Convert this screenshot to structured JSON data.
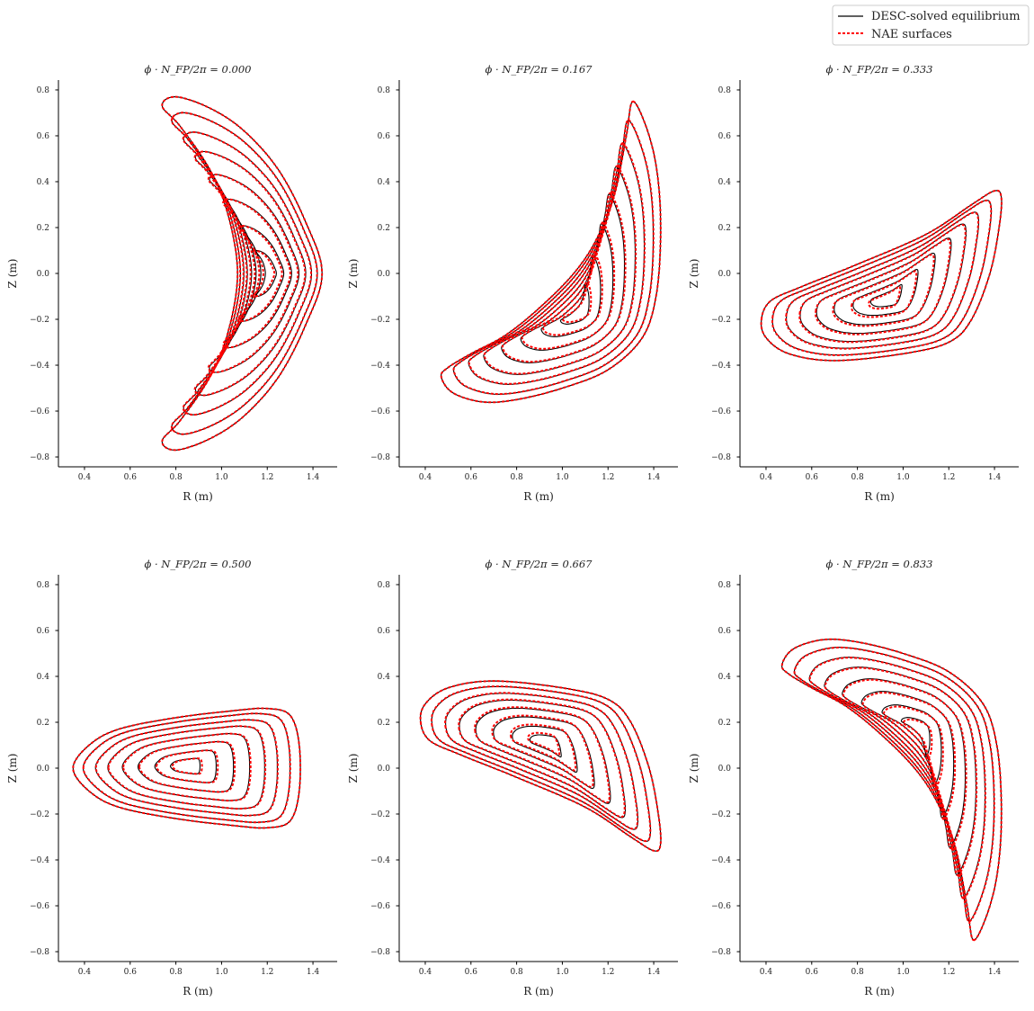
{
  "legend": {
    "entries": [
      {
        "label": "DESC-solved equilibrium",
        "color": "#000000",
        "style": "solid"
      },
      {
        "label": "NAE surfaces",
        "color": "#ff0000",
        "style": "dashed"
      }
    ],
    "placement": "top-right"
  },
  "chart_data": [
    {
      "type": "line",
      "title": "ϕ · N_FP/2π = 0.000",
      "xlabel": "R (m)",
      "ylabel": "Z (m)",
      "xlim": [
        0.286,
        1.506
      ],
      "ylim": [
        -0.843,
        0.843
      ],
      "x_ticks": [
        "0.4",
        "0.6",
        "0.8",
        "1.0",
        "1.2",
        "1.4"
      ],
      "y_ticks": [
        "−0.8",
        "−0.6",
        "−0.4",
        "−0.2",
        "0.0",
        "0.2",
        "0.4",
        "0.6",
        "0.8"
      ],
      "rho": [
        0.13,
        0.27,
        0.42,
        0.56,
        0.69,
        0.8,
        0.91,
        1.0
      ],
      "desc_axis": [
        1.21,
        0.0
      ],
      "nae_axis": [
        1.2,
        0.0
      ],
      "boundary": [
        [
          0.74,
          0.73
        ],
        [
          0.8,
          0.77
        ],
        [
          0.95,
          0.72
        ],
        [
          1.1,
          0.62
        ],
        [
          1.25,
          0.45
        ],
        [
          1.37,
          0.22
        ],
        [
          1.44,
          0.0
        ],
        [
          1.37,
          -0.22
        ],
        [
          1.25,
          -0.45
        ],
        [
          1.1,
          -0.62
        ],
        [
          0.95,
          -0.72
        ],
        [
          0.8,
          -0.77
        ],
        [
          0.74,
          -0.73
        ],
        [
          0.82,
          -0.64
        ],
        [
          0.95,
          -0.45
        ],
        [
          1.03,
          -0.25
        ],
        [
          1.07,
          0.0
        ],
        [
          1.03,
          0.25
        ],
        [
          0.95,
          0.45
        ],
        [
          0.82,
          0.64
        ]
      ]
    },
    {
      "type": "line",
      "title": "ϕ · N_FP/2π = 0.167",
      "xlabel": "R (m)",
      "ylabel": "Z (m)",
      "xlim": [
        0.286,
        1.506
      ],
      "ylim": [
        -0.843,
        0.843
      ],
      "x_ticks": [
        "0.4",
        "0.6",
        "0.8",
        "1.0",
        "1.2",
        "1.4"
      ],
      "y_ticks": [
        "−0.8",
        "−0.6",
        "−0.4",
        "−0.2",
        "0.0",
        "0.2",
        "0.4",
        "0.6",
        "0.8"
      ],
      "rho": [
        0.13,
        0.27,
        0.42,
        0.56,
        0.69,
        0.8,
        0.91,
        1.0
      ],
      "desc_axis": [
        1.07,
        -0.17
      ],
      "nae_axis": [
        1.08,
        -0.16
      ],
      "boundary": [
        [
          1.31,
          0.75
        ],
        [
          1.38,
          0.6
        ],
        [
          1.42,
          0.4
        ],
        [
          1.43,
          0.15
        ],
        [
          1.41,
          -0.1
        ],
        [
          1.35,
          -0.28
        ],
        [
          1.2,
          -0.42
        ],
        [
          1.0,
          -0.5
        ],
        [
          0.8,
          -0.55
        ],
        [
          0.65,
          -0.56
        ],
        [
          0.52,
          -0.52
        ],
        [
          0.47,
          -0.45
        ],
        [
          0.5,
          -0.41
        ],
        [
          0.6,
          -0.35
        ],
        [
          0.75,
          -0.27
        ],
        [
          0.9,
          -0.15
        ],
        [
          1.05,
          0.0
        ],
        [
          1.15,
          0.15
        ],
        [
          1.23,
          0.35
        ],
        [
          1.28,
          0.6
        ]
      ]
    },
    {
      "type": "line",
      "title": "ϕ · N_FP/2π = 0.333",
      "xlabel": "R (m)",
      "ylabel": "Z (m)",
      "xlim": [
        0.286,
        1.506
      ],
      "ylim": [
        -0.843,
        0.843
      ],
      "x_ticks": [
        "0.4",
        "0.6",
        "0.8",
        "1.0",
        "1.2",
        "1.4"
      ],
      "y_ticks": [
        "−0.8",
        "−0.6",
        "−0.4",
        "−0.2",
        "0.0",
        "0.2",
        "0.4",
        "0.6",
        "0.8"
      ],
      "rho": [
        0.13,
        0.27,
        0.42,
        0.56,
        0.69,
        0.8,
        0.91,
        1.0
      ],
      "desc_axis": [
        0.93,
        -0.11
      ],
      "nae_axis": [
        0.92,
        -0.12
      ],
      "boundary": [
        [
          0.38,
          -0.2
        ],
        [
          0.42,
          -0.12
        ],
        [
          0.55,
          -0.06
        ],
        [
          0.8,
          0.04
        ],
        [
          1.1,
          0.17
        ],
        [
          1.3,
          0.3
        ],
        [
          1.4,
          0.36
        ],
        [
          1.43,
          0.33
        ],
        [
          1.42,
          0.2
        ],
        [
          1.38,
          0.0
        ],
        [
          1.3,
          -0.2
        ],
        [
          1.2,
          -0.3
        ],
        [
          1.0,
          -0.35
        ],
        [
          0.7,
          -0.38
        ],
        [
          0.5,
          -0.35
        ],
        [
          0.4,
          -0.28
        ]
      ]
    },
    {
      "type": "line",
      "title": "ϕ · N_FP/2π = 0.500",
      "xlabel": "R (m)",
      "ylabel": "Z (m)",
      "xlim": [
        0.286,
        1.506
      ],
      "ylim": [
        -0.843,
        0.843
      ],
      "x_ticks": [
        "0.4",
        "0.6",
        "0.8",
        "1.0",
        "1.2",
        "1.4"
      ],
      "y_ticks": [
        "−0.8",
        "−0.6",
        "−0.4",
        "−0.2",
        "0.0",
        "0.2",
        "0.4",
        "0.6",
        "0.8"
      ],
      "rho": [
        0.13,
        0.27,
        0.42,
        0.56,
        0.69,
        0.8,
        0.91,
        1.0
      ],
      "desc_axis": [
        0.84,
        0.01
      ],
      "nae_axis": [
        0.85,
        0.01
      ],
      "boundary": [
        [
          0.35,
          0.0
        ],
        [
          0.42,
          0.1
        ],
        [
          0.55,
          0.17
        ],
        [
          0.8,
          0.22
        ],
        [
          1.05,
          0.25
        ],
        [
          1.2,
          0.26
        ],
        [
          1.3,
          0.23
        ],
        [
          1.34,
          0.1
        ],
        [
          1.34,
          -0.1
        ],
        [
          1.3,
          -0.23
        ],
        [
          1.2,
          -0.26
        ],
        [
          1.05,
          -0.25
        ],
        [
          0.8,
          -0.22
        ],
        [
          0.55,
          -0.17
        ],
        [
          0.42,
          -0.1
        ]
      ]
    },
    {
      "type": "line",
      "title": "ϕ · N_FP/2π = 0.667",
      "xlabel": "R (m)",
      "ylabel": "Z (m)",
      "xlim": [
        0.286,
        1.506
      ],
      "ylim": [
        -0.843,
        0.843
      ],
      "x_ticks": [
        "0.4",
        "0.6",
        "0.8",
        "1.0",
        "1.2",
        "1.4"
      ],
      "y_ticks": [
        "−0.8",
        "−0.6",
        "−0.4",
        "−0.2",
        "0.0",
        "0.2",
        "0.4",
        "0.6",
        "0.8"
      ],
      "rho": [
        0.13,
        0.27,
        0.42,
        0.56,
        0.69,
        0.8,
        0.91,
        1.0
      ],
      "desc_axis": [
        0.93,
        0.11
      ],
      "nae_axis": [
        0.92,
        0.12
      ],
      "boundary": [
        [
          0.38,
          0.2
        ],
        [
          0.42,
          0.12
        ],
        [
          0.55,
          0.06
        ],
        [
          0.8,
          -0.04
        ],
        [
          1.1,
          -0.17
        ],
        [
          1.3,
          -0.3
        ],
        [
          1.4,
          -0.36
        ],
        [
          1.43,
          -0.33
        ],
        [
          1.42,
          -0.2
        ],
        [
          1.38,
          0.0
        ],
        [
          1.3,
          0.2
        ],
        [
          1.2,
          0.3
        ],
        [
          1.0,
          0.35
        ],
        [
          0.7,
          0.38
        ],
        [
          0.5,
          0.35
        ],
        [
          0.4,
          0.28
        ]
      ]
    },
    {
      "type": "line",
      "title": "ϕ · N_FP/2π = 0.833",
      "xlabel": "R (m)",
      "ylabel": "Z (m)",
      "xlim": [
        0.286,
        1.506
      ],
      "ylim": [
        -0.843,
        0.843
      ],
      "x_ticks": [
        "0.4",
        "0.6",
        "0.8",
        "1.0",
        "1.2",
        "1.4"
      ],
      "y_ticks": [
        "−0.8",
        "−0.6",
        "−0.4",
        "−0.2",
        "0.0",
        "0.2",
        "0.4",
        "0.6",
        "0.8"
      ],
      "rho": [
        0.13,
        0.27,
        0.42,
        0.56,
        0.69,
        0.8,
        0.91,
        1.0
      ],
      "desc_axis": [
        1.07,
        0.17
      ],
      "nae_axis": [
        1.08,
        0.16
      ],
      "boundary": [
        [
          1.31,
          -0.75
        ],
        [
          1.38,
          -0.6
        ],
        [
          1.42,
          -0.4
        ],
        [
          1.43,
          -0.15
        ],
        [
          1.41,
          0.1
        ],
        [
          1.35,
          0.28
        ],
        [
          1.2,
          0.42
        ],
        [
          1.0,
          0.5
        ],
        [
          0.8,
          0.55
        ],
        [
          0.65,
          0.56
        ],
        [
          0.52,
          0.52
        ],
        [
          0.47,
          0.45
        ],
        [
          0.5,
          0.41
        ],
        [
          0.6,
          0.35
        ],
        [
          0.75,
          0.27
        ],
        [
          0.9,
          0.15
        ],
        [
          1.05,
          0.0
        ],
        [
          1.15,
          -0.15
        ],
        [
          1.23,
          -0.35
        ],
        [
          1.28,
          -0.6
        ]
      ]
    }
  ]
}
